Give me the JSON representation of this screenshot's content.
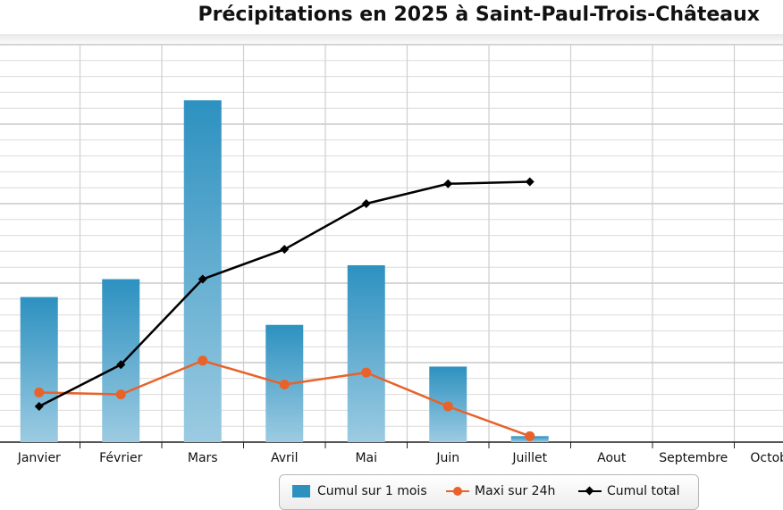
{
  "chart_data": {
    "type": "bar",
    "title": "Précipitations en 2025 à Saint-Paul-Trois-Châteaux",
    "categories": [
      "Janvier",
      "Février",
      "Mars",
      "Avril",
      "Mai",
      "Juin",
      "Juillet",
      "Aout",
      "Septembre",
      "Octobre"
    ],
    "ylim": [
      0,
      100
    ],
    "grid": true,
    "legend_position": "bottom",
    "series": [
      {
        "name": "Cumul sur 1 mois",
        "type": "bar",
        "color": "#2d91c0",
        "values": [
          36.5,
          41.0,
          86.0,
          29.5,
          44.5,
          19.0,
          1.5,
          null,
          null,
          null
        ]
      },
      {
        "name": "Maxi sur 24h",
        "type": "line",
        "marker": "circle",
        "color": "#e8622a",
        "values": [
          12.5,
          12.0,
          20.5,
          14.5,
          17.5,
          9.0,
          1.5,
          null,
          null,
          null
        ]
      },
      {
        "name": "Cumul total",
        "type": "line",
        "marker": "diamond",
        "color": "#000000",
        "values": [
          9.0,
          19.5,
          41.0,
          48.5,
          60.0,
          65.0,
          65.5,
          null,
          null,
          null
        ]
      }
    ]
  }
}
